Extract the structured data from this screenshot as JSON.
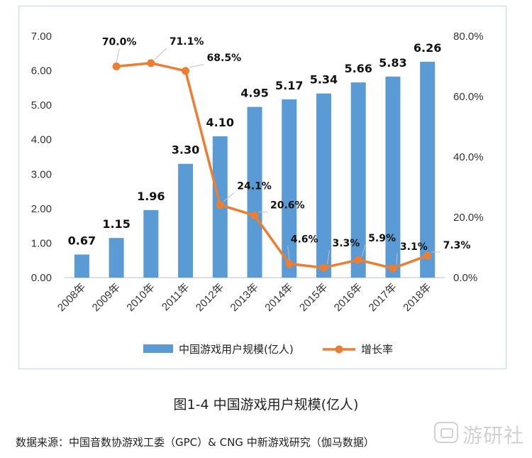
{
  "chart_data": {
    "type": "bar+line",
    "categories": [
      "2008年",
      "2009年",
      "2010年",
      "2011年",
      "2012年",
      "2013年",
      "2014年",
      "2015年",
      "2016年",
      "2017年",
      "2018年"
    ],
    "series": [
      {
        "name": "中国游戏用户规模(亿人)",
        "type": "bar",
        "axis": "left",
        "color": "#5b9bd5",
        "values": [
          0.67,
          1.15,
          1.96,
          3.3,
          4.1,
          4.95,
          5.17,
          5.34,
          5.66,
          5.83,
          6.26
        ],
        "labels": [
          "0.67",
          "1.15",
          "1.96",
          "3.30",
          "4.10",
          "4.95",
          "5.17",
          "5.34",
          "5.66",
          "5.83",
          "6.26"
        ]
      },
      {
        "name": "增长率",
        "type": "line",
        "axis": "right",
        "color": "#ed7d31",
        "values": [
          null,
          70.0,
          71.1,
          68.5,
          24.1,
          20.6,
          4.6,
          3.3,
          5.9,
          3.1,
          7.3
        ],
        "labels": [
          null,
          "70.0%",
          "71.1%",
          "68.5%",
          "24.1%",
          "20.6%",
          "4.6%",
          "3.3%",
          "5.9%",
          "3.1%",
          "7.3%"
        ]
      }
    ],
    "y_left": {
      "range": [
        0,
        7
      ],
      "ticks": [
        "0.00",
        "1.00",
        "2.00",
        "3.00",
        "4.00",
        "5.00",
        "6.00",
        "7.00"
      ]
    },
    "y_right": {
      "range": [
        0,
        80
      ],
      "ticks": [
        "0.0%",
        "20.0%",
        "40.0%",
        "60.0%",
        "80.0%"
      ]
    },
    "grid": false,
    "legend": "bottom"
  },
  "caption": "图1-4  中国游戏用户规模(亿人)",
  "source": "数据来源：中国音数协游戏工委（GPC）& CNG 中新游戏研究（伽马数据）",
  "watermark": {
    "text": "游研社",
    "icon": "game-controller-icon",
    "color": "#9a9a9a"
  }
}
